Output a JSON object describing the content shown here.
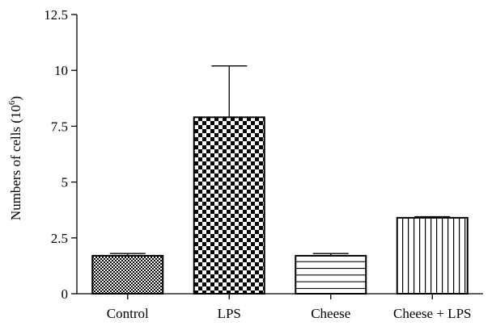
{
  "chart_data": {
    "type": "bar",
    "title": "",
    "xlabel": "",
    "ylabel": "Numbers of cells (10",
    "ylabel_superscript": "6",
    "ylabel_close": ")",
    "categories": [
      "Control",
      "LPS",
      "Cheese",
      "Cheese + LPS"
    ],
    "values": [
      1.7,
      7.9,
      1.7,
      3.4
    ],
    "error_upper": [
      0.1,
      2.3,
      0.1,
      0.05
    ],
    "ylim": [
      0,
      12.5
    ],
    "yticks": [
      0,
      2.5,
      5,
      7.5,
      10,
      12.5
    ],
    "ytick_labels": [
      "0",
      "2.5",
      "5",
      "7.5",
      "10",
      "12.5"
    ],
    "patterns": [
      "fine-checker",
      "coarse-checker",
      "horizontal-lines",
      "vertical-lines"
    ],
    "grid": false,
    "legend": "none"
  }
}
